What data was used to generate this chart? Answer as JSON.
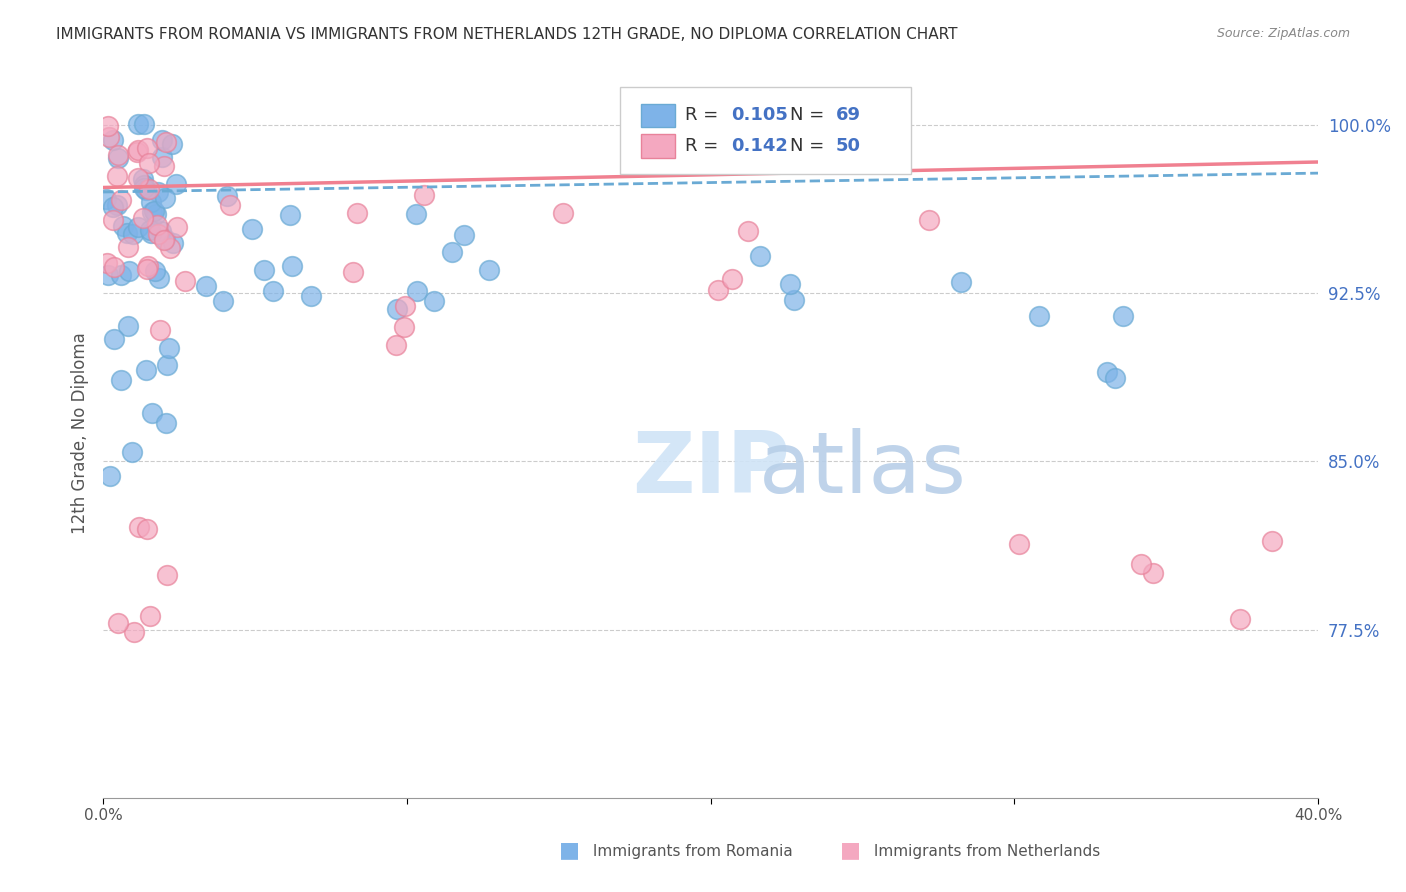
{
  "title": "IMMIGRANTS FROM ROMANIA VS IMMIGRANTS FROM NETHERLANDS 12TH GRADE, NO DIPLOMA CORRELATION CHART",
  "source": "Source: ZipAtlas.com",
  "ylabel": "12th Grade, No Diploma",
  "ytick_labels": [
    "100.0%",
    "92.5%",
    "85.0%",
    "77.5%"
  ],
  "ytick_values": [
    1.0,
    0.925,
    0.85,
    0.775
  ],
  "xmin": 0.0,
  "xmax": 0.4,
  "ymin": 0.7,
  "ymax": 1.025,
  "R_romania": 0.105,
  "N_romania": 69,
  "R_netherlands": 0.142,
  "N_netherlands": 50,
  "color_romania": "#7eb3e8",
  "color_netherlands": "#f4a8c0",
  "color_romania_line": "#6aaad4",
  "color_netherlands_line": "#f08090",
  "title_color": "#333333",
  "watermark_color": "#d0e4f7"
}
